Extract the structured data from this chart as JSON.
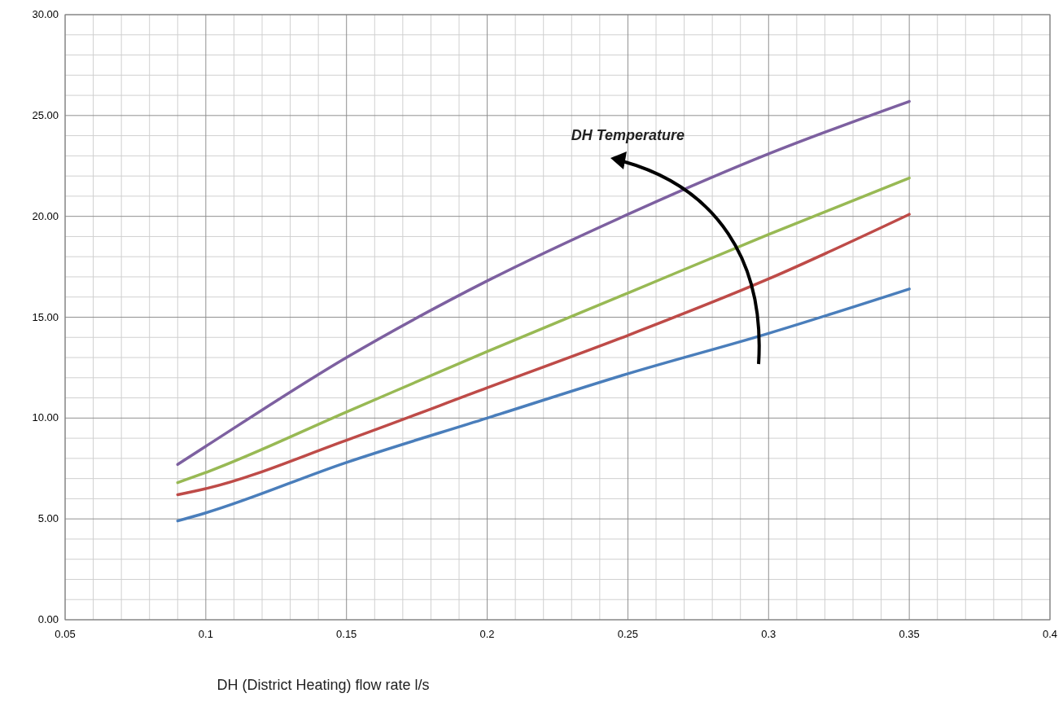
{
  "chart_data": {
    "type": "line",
    "xlabel": "DH (District Heating) flow rate l/s",
    "annotations": [
      "DH Temperature"
    ],
    "x": [
      0.09,
      0.1,
      0.15,
      0.2,
      0.25,
      0.3,
      0.35
    ],
    "series": [
      {
        "color": "#4a7ebb",
        "values": [
          4.9,
          5.3,
          7.8,
          10.0,
          12.2,
          14.2,
          16.4
        ]
      },
      {
        "color": "#be4b48",
        "values": [
          6.2,
          6.5,
          8.9,
          11.5,
          14.1,
          16.9,
          20.1
        ]
      },
      {
        "color": "#98b954",
        "values": [
          6.8,
          7.3,
          10.3,
          13.3,
          16.2,
          19.1,
          21.9
        ]
      },
      {
        "color": "#7d60a0",
        "values": [
          7.7,
          8.6,
          13.0,
          16.8,
          20.1,
          23.1,
          25.7
        ]
      }
    ],
    "xlim": [
      0.05,
      0.4
    ],
    "xticks": [
      0.05,
      0.1,
      0.15,
      0.2,
      0.25,
      0.3,
      0.35,
      0.4
    ],
    "ylim": [
      0,
      30
    ],
    "yticks": [
      {
        "value": 0,
        "label": "0.00"
      },
      {
        "value": 5,
        "label": "5.00"
      },
      {
        "value": 10,
        "label": "10.00"
      },
      {
        "value": 15,
        "label": "15.00"
      },
      {
        "value": 20,
        "label": "20.00"
      },
      {
        "value": 25,
        "label": "25.00"
      },
      {
        "value": 30,
        "label": "30.00"
      }
    ],
    "grid": true,
    "marker": "none",
    "line_style": "solid"
  }
}
